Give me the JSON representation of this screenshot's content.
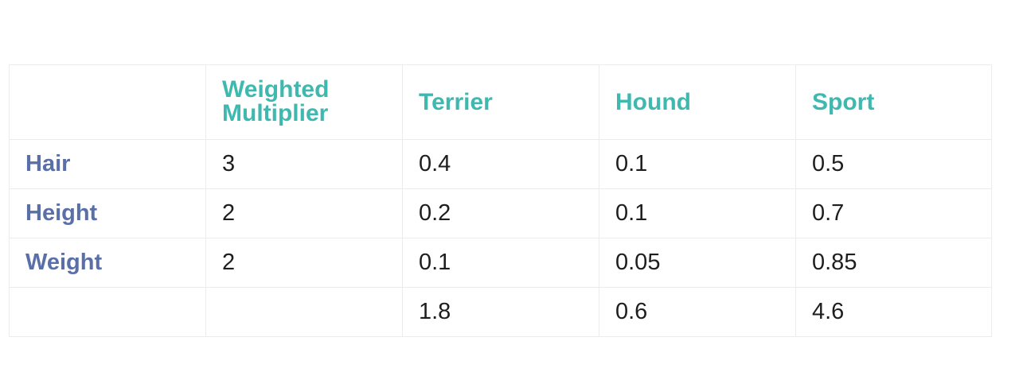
{
  "table": {
    "columns": [
      {
        "label": "",
        "name": "corner"
      },
      {
        "label": "Weighted\nMultiplier",
        "name": "weighted-multiplier"
      },
      {
        "label": "Terrier",
        "name": "terrier"
      },
      {
        "label": "Hound",
        "name": "hound"
      },
      {
        "label": "Sport",
        "name": "sport"
      }
    ],
    "rows": [
      {
        "label": "Hair",
        "multiplier": "3",
        "terrier": "0.4",
        "hound": "0.1",
        "sport": "0.5"
      },
      {
        "label": "Height",
        "multiplier": "2",
        "terrier": "0.2",
        "hound": "0.1",
        "sport": "0.7"
      },
      {
        "label": "Weight",
        "multiplier": "2",
        "terrier": "0.1",
        "hound": "0.05",
        "sport": "0.85"
      },
      {
        "label": "",
        "multiplier": "",
        "terrier": "1.8",
        "hound": "0.6",
        "sport": "4.6"
      }
    ],
    "colors": {
      "header_teal": "#3fb8b0",
      "row_label_blue": "#5a6fa8",
      "value_text": "#1e1e1e",
      "grid_line": "#ececec"
    }
  }
}
